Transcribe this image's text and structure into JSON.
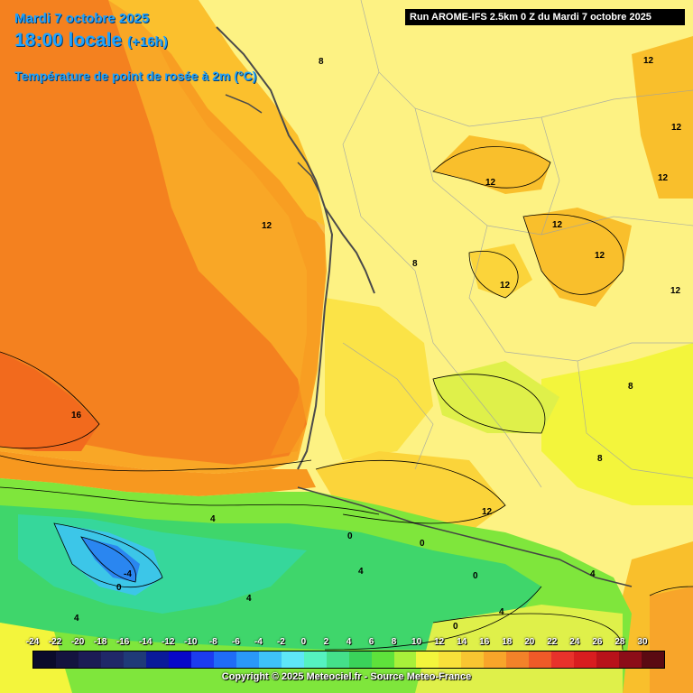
{
  "header": {
    "date_line": "Mardi 7 octobre 2025",
    "time_line": "18:00 locale",
    "time_offset": "(+16h)",
    "parameter": "Température de point de rosée à 2m (°C)"
  },
  "run_info": "Run AROME-IFS 2.5km 0 Z du Mardi 7 octobre 2025",
  "contour_labels": [
    "8",
    "12",
    "12",
    "12",
    "12",
    "12",
    "12",
    "12",
    "8",
    "12",
    "12",
    "16",
    "8",
    "8",
    "12",
    "4",
    "0",
    "0",
    "-4",
    "0",
    "4",
    "4",
    "0",
    "4",
    "4",
    "4",
    "0"
  ],
  "legend": {
    "ticks": [
      "-24",
      "-22",
      "-20",
      "-18",
      "-16",
      "-14",
      "-12",
      "-10",
      "-8",
      "-6",
      "-4",
      "-2",
      "0",
      "2",
      "4",
      "6",
      "8",
      "10",
      "12",
      "14",
      "16",
      "18",
      "20",
      "22",
      "24",
      "26",
      "28",
      "30"
    ],
    "colors": [
      "#0b0b2b",
      "#14143f",
      "#1c1c55",
      "#202868",
      "#1f3a78",
      "#0a1a9a",
      "#0808c8",
      "#1c3cf0",
      "#1f6cf7",
      "#2a98f8",
      "#3ec2f8",
      "#5ee6f7",
      "#55f2c0",
      "#44e08a",
      "#3ad35a",
      "#5ee23b",
      "#a8f03a",
      "#f3f53c",
      "#f8e13a",
      "#f8c531",
      "#f8a52a",
      "#f38229",
      "#ef5a28",
      "#e8322b",
      "#d81d1f",
      "#b8121a",
      "#8c0d18",
      "#5a0a12"
    ]
  },
  "copyright": "Copyright © 2025 Meteociel.fr - Source Meteo-France",
  "colors": {
    "ocean_16": "#f4811f",
    "ocean_14": "#f79a23",
    "land_12": "#f9bf2c",
    "land_10": "#fbe347",
    "land_8": "#fdf283",
    "land_6": "#f6f54d",
    "mountain_4": "#7fe63c",
    "mountain_2": "#3fd66b",
    "mountain_0": "#36d79b",
    "mountain_neg2": "#3cc6e8",
    "mountain_neg4": "#2a86f0",
    "title": "#1fa3ff"
  }
}
